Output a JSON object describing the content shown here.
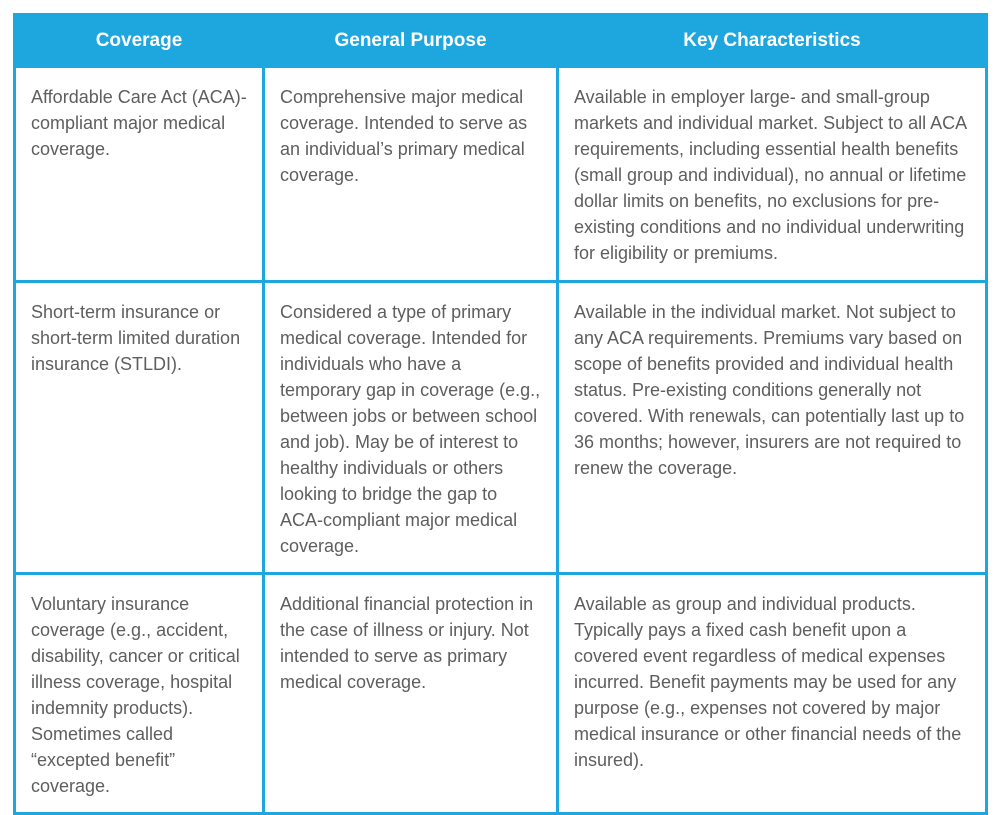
{
  "table": {
    "headers": [
      "Coverage",
      "General Purpose",
      "Key Characteristics"
    ],
    "rows": [
      {
        "coverage": "Affordable Care Act (ACA)-compliant major medical coverage.",
        "purpose": "Comprehensive major medical coverage. Intended to serve as an individual’s primary medical coverage.",
        "characteristics": "Available in employer large- and small-group markets and individual market. Subject to all ACA requirements, including essential health benefits (small group and individual), no annual or lifetime dollar limits on benefits, no exclusions for pre-existing conditions and no individual underwriting for eligibility or premiums."
      },
      {
        "coverage": "Short-term insurance or short-term limited duration insurance (STLDI).",
        "purpose": "Considered a type of primary medical coverage. Intended for individuals who have a temporary gap in coverage (e.g., between jobs or between school and job). May be of interest to healthy individuals or others looking to bridge the gap to ACA-compliant major medical coverage.",
        "characteristics": "Available in the individual market. Not subject to any ACA requirements. Premiums vary based on scope of benefits provided and individual health status. Pre-existing conditions generally not covered.  With renewals, can potentially last up to 36 months; however, insurers are not required to renew the coverage."
      },
      {
        "coverage": "Voluntary insurance coverage (e.g., accident, disability, cancer or critical illness coverage, hospital indemnity products).  Sometimes called “excepted benefit” coverage.",
        "purpose": "Additional financial protection in the case of illness or injury. Not intended to serve as primary medical coverage.",
        "characteristics": "Available as group and individual products. Typically pays a fixed cash benefit upon a covered event regardless of medical expenses incurred. Benefit payments may be used for any purpose (e.g., expenses not covered by major medical insurance or other financial needs of the insured)."
      }
    ]
  },
  "colors": {
    "accent": "#1ea6de",
    "header_text": "#ffffff",
    "body_text": "#5e5e5e"
  }
}
